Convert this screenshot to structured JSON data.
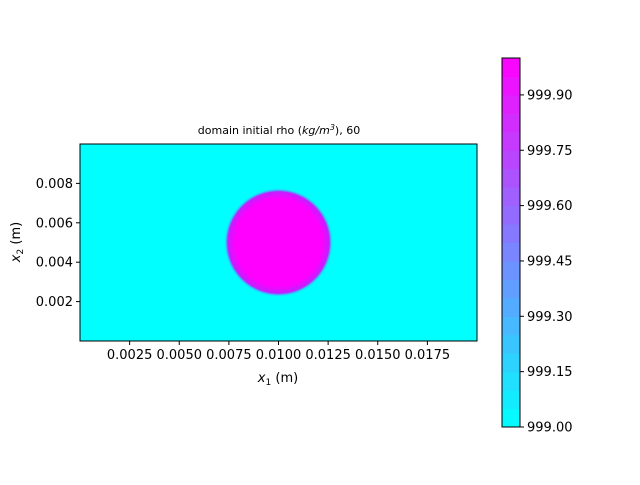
{
  "chart_data": {
    "type": "heatmap",
    "title": "domain initial rho (kg/m³), 60",
    "title_parts": {
      "prefix": "domain initial rho (",
      "units_num": "kg/m",
      "units_exp": "3",
      "suffix": "), 60"
    },
    "xlabel_parts": {
      "base": "x",
      "sub": "1",
      "unit": " (m)"
    },
    "ylabel_parts": {
      "base": "x",
      "sub": "2",
      "unit": " (m)"
    },
    "xlim": [
      0.0,
      0.02
    ],
    "ylim": [
      0.0,
      0.01
    ],
    "xticks": [
      0.0025,
      0.005,
      0.0075,
      0.01,
      0.0125,
      0.015,
      0.0175
    ],
    "xtick_labels": [
      "0.0025",
      "0.0050",
      "0.0075",
      "0.0100",
      "0.0125",
      "0.0150",
      "0.0175"
    ],
    "yticks": [
      0.002,
      0.004,
      0.006,
      0.008
    ],
    "ytick_labels": [
      "0.002",
      "0.004",
      "0.006",
      "0.008"
    ],
    "field": {
      "background_value": 999.0,
      "circle": {
        "center_x": 0.01,
        "center_y": 0.005,
        "radius": 0.0025,
        "value": 1000.0
      }
    },
    "colormap": "cool",
    "colors": {
      "low": "#00ffff",
      "high": "#ff00ff"
    },
    "colorbar": {
      "range": [
        999.0,
        1000.0
      ],
      "ticks": [
        999.0,
        999.15,
        999.3,
        999.45,
        999.6,
        999.75,
        999.9
      ],
      "tick_labels": [
        "999.00",
        "999.15",
        "999.30",
        "999.45",
        "999.60",
        "999.75",
        "999.90"
      ]
    },
    "grid": false
  }
}
